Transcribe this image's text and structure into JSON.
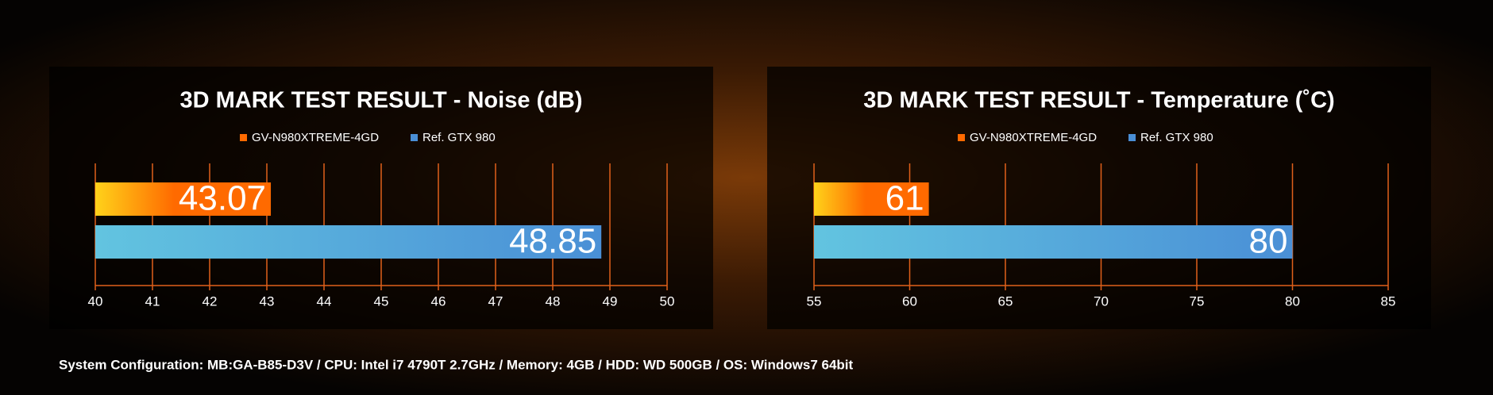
{
  "chart_data": [
    {
      "type": "barh",
      "title": "3D MARK TEST RESULT - Noise (dB)",
      "series": [
        {
          "name": "GV-N980XTREME-4GD",
          "color": "#ff6a00",
          "values": [
            43.07
          ]
        },
        {
          "name": "Ref. GTX 980",
          "color": "#4a8fd6",
          "values": [
            48.85
          ]
        }
      ],
      "xlim": [
        40,
        50
      ],
      "xticks": [
        40,
        41,
        42,
        43,
        44,
        45,
        46,
        47,
        48,
        49,
        50
      ],
      "grid": true
    },
    {
      "type": "barh",
      "title": "3D MARK TEST RESULT - Temperature (˚C)",
      "series": [
        {
          "name": "GV-N980XTREME-4GD",
          "color": "#ff6a00",
          "values": [
            61
          ]
        },
        {
          "name": "Ref. GTX 980",
          "color": "#4a8fd6",
          "values": [
            80
          ]
        }
      ],
      "xlim": [
        55,
        85
      ],
      "xticks": [
        55,
        60,
        65,
        70,
        75,
        80,
        85
      ],
      "grid": true
    }
  ],
  "footer": "System Configuration: MB:GA-B85-D3V / CPU: Intel i7 4790T 2.7GHz / Memory: 4GB / HDD: WD 500GB / OS: Windows7 64bit"
}
